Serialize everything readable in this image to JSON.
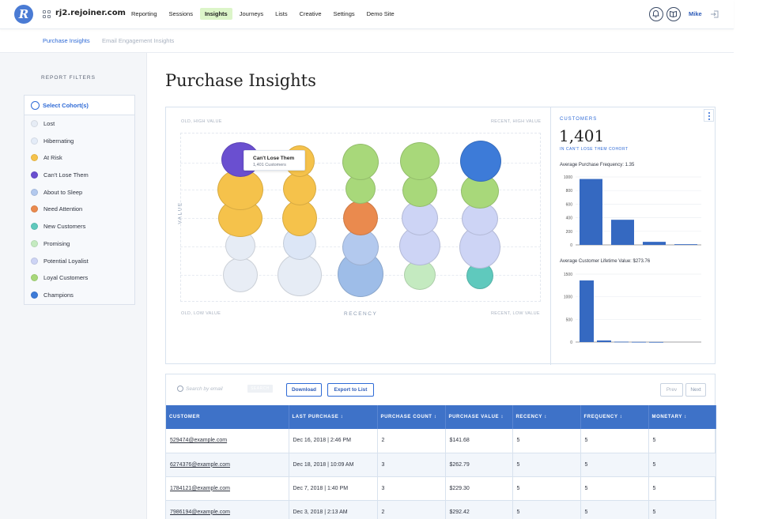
{
  "app": {
    "site": "rj2.rejoiner.com",
    "logo_letter": "R",
    "nav": [
      "Reporting",
      "Sessions",
      "Insights",
      "Journeys",
      "Lists",
      "Creative",
      "Settings",
      "Demo Site"
    ],
    "active_nav": "Insights",
    "user": "Mike"
  },
  "subnav": {
    "items": [
      "Purchase Insights",
      "Email Engagement Insights"
    ]
  },
  "sidebar": {
    "title": "REPORT FILTERS",
    "select_label": "Select Cohort(s)",
    "cohorts": [
      {
        "label": "Lost",
        "color": "#e6ecf5"
      },
      {
        "label": "Hibernating",
        "color": "#e4ecf8"
      },
      {
        "label": "At Risk",
        "color": "#f5c24b"
      },
      {
        "label": "Can't Lose Them",
        "color": "#6a4fd0"
      },
      {
        "label": "About to Sleep",
        "color": "#b3c9ee"
      },
      {
        "label": "Need Attention",
        "color": "#ea8a4e"
      },
      {
        "label": "New Customers",
        "color": "#5fc9bd"
      },
      {
        "label": "Promising",
        "color": "#c4eac0"
      },
      {
        "label": "Potential Loyalist",
        "color": "#cdd4f5"
      },
      {
        "label": "Loyal Customers",
        "color": "#a8d87a"
      },
      {
        "label": "Champions",
        "color": "#3d7bd8"
      }
    ]
  },
  "main": {
    "title": "Purchase Insights",
    "corners": {
      "top_left": "OLD, HIGH VALUE",
      "top_right": "RECENT, HIGH VALUE",
      "bottom_left": "OLD, LOW VALUE",
      "bottom_right": "RECENT, LOW VALUE"
    },
    "axis_value": "VALUE",
    "axis_recency": "RECENCY",
    "tooltip": {
      "title": "Can't Lose Them",
      "subtitle": "1,401 Customers"
    }
  },
  "stats": {
    "label": "CUSTOMERS",
    "count": "1,401",
    "cohort_label": "IN CAN'T LOSE THEM COHORT",
    "freq_label": "Average Purchase Frequency: 1.35",
    "clv_label": "Average Customer Lifetime Value: $273.76"
  },
  "chart_data": [
    {
      "type": "bar",
      "title": "Average Purchase Frequency: 1.35",
      "values": [
        970,
        370,
        45,
        10
      ],
      "ylim": [
        0,
        1000
      ],
      "yticks": [
        0,
        200,
        400,
        600,
        800,
        1000
      ],
      "color": "#3569c1"
    },
    {
      "type": "bar",
      "title": "Average Customer Lifetime Value: $273.76",
      "values": [
        1360,
        35,
        8,
        4,
        2
      ],
      "ylim": [
        0,
        1500
      ],
      "yticks": [
        0,
        500,
        1000,
        1500
      ],
      "color": "#3569c1"
    }
  ],
  "table": {
    "search_placeholder": "Search by email",
    "search_button": "SEARCH",
    "download": "Download",
    "export": "Export to List",
    "prev": "Prev",
    "next": "Next",
    "headers": [
      "CUSTOMER",
      "LAST PURCHASE ↕",
      "PURCHASE COUNT ↕",
      "PURCHASE VALUE ↕",
      "RECENCY ↕",
      "FREQUENCY ↕",
      "MONETARY ↕"
    ],
    "rows": [
      [
        "529474@example.com",
        "Dec 16, 2018 | 2:46 PM",
        "2",
        "$141.68",
        "5",
        "5",
        "5"
      ],
      [
        "6274376@example.com",
        "Dec 18, 2018 | 10:09 AM",
        "3",
        "$262.79",
        "5",
        "5",
        "5"
      ],
      [
        "1784121@example.com",
        "Dec 7, 2018 | 1:40 PM",
        "3",
        "$229.30",
        "5",
        "5",
        "5"
      ],
      [
        "7986194@example.com",
        "Dec 3, 2018 | 2:13 AM",
        "2",
        "$292.42",
        "5",
        "5",
        "5"
      ]
    ]
  }
}
